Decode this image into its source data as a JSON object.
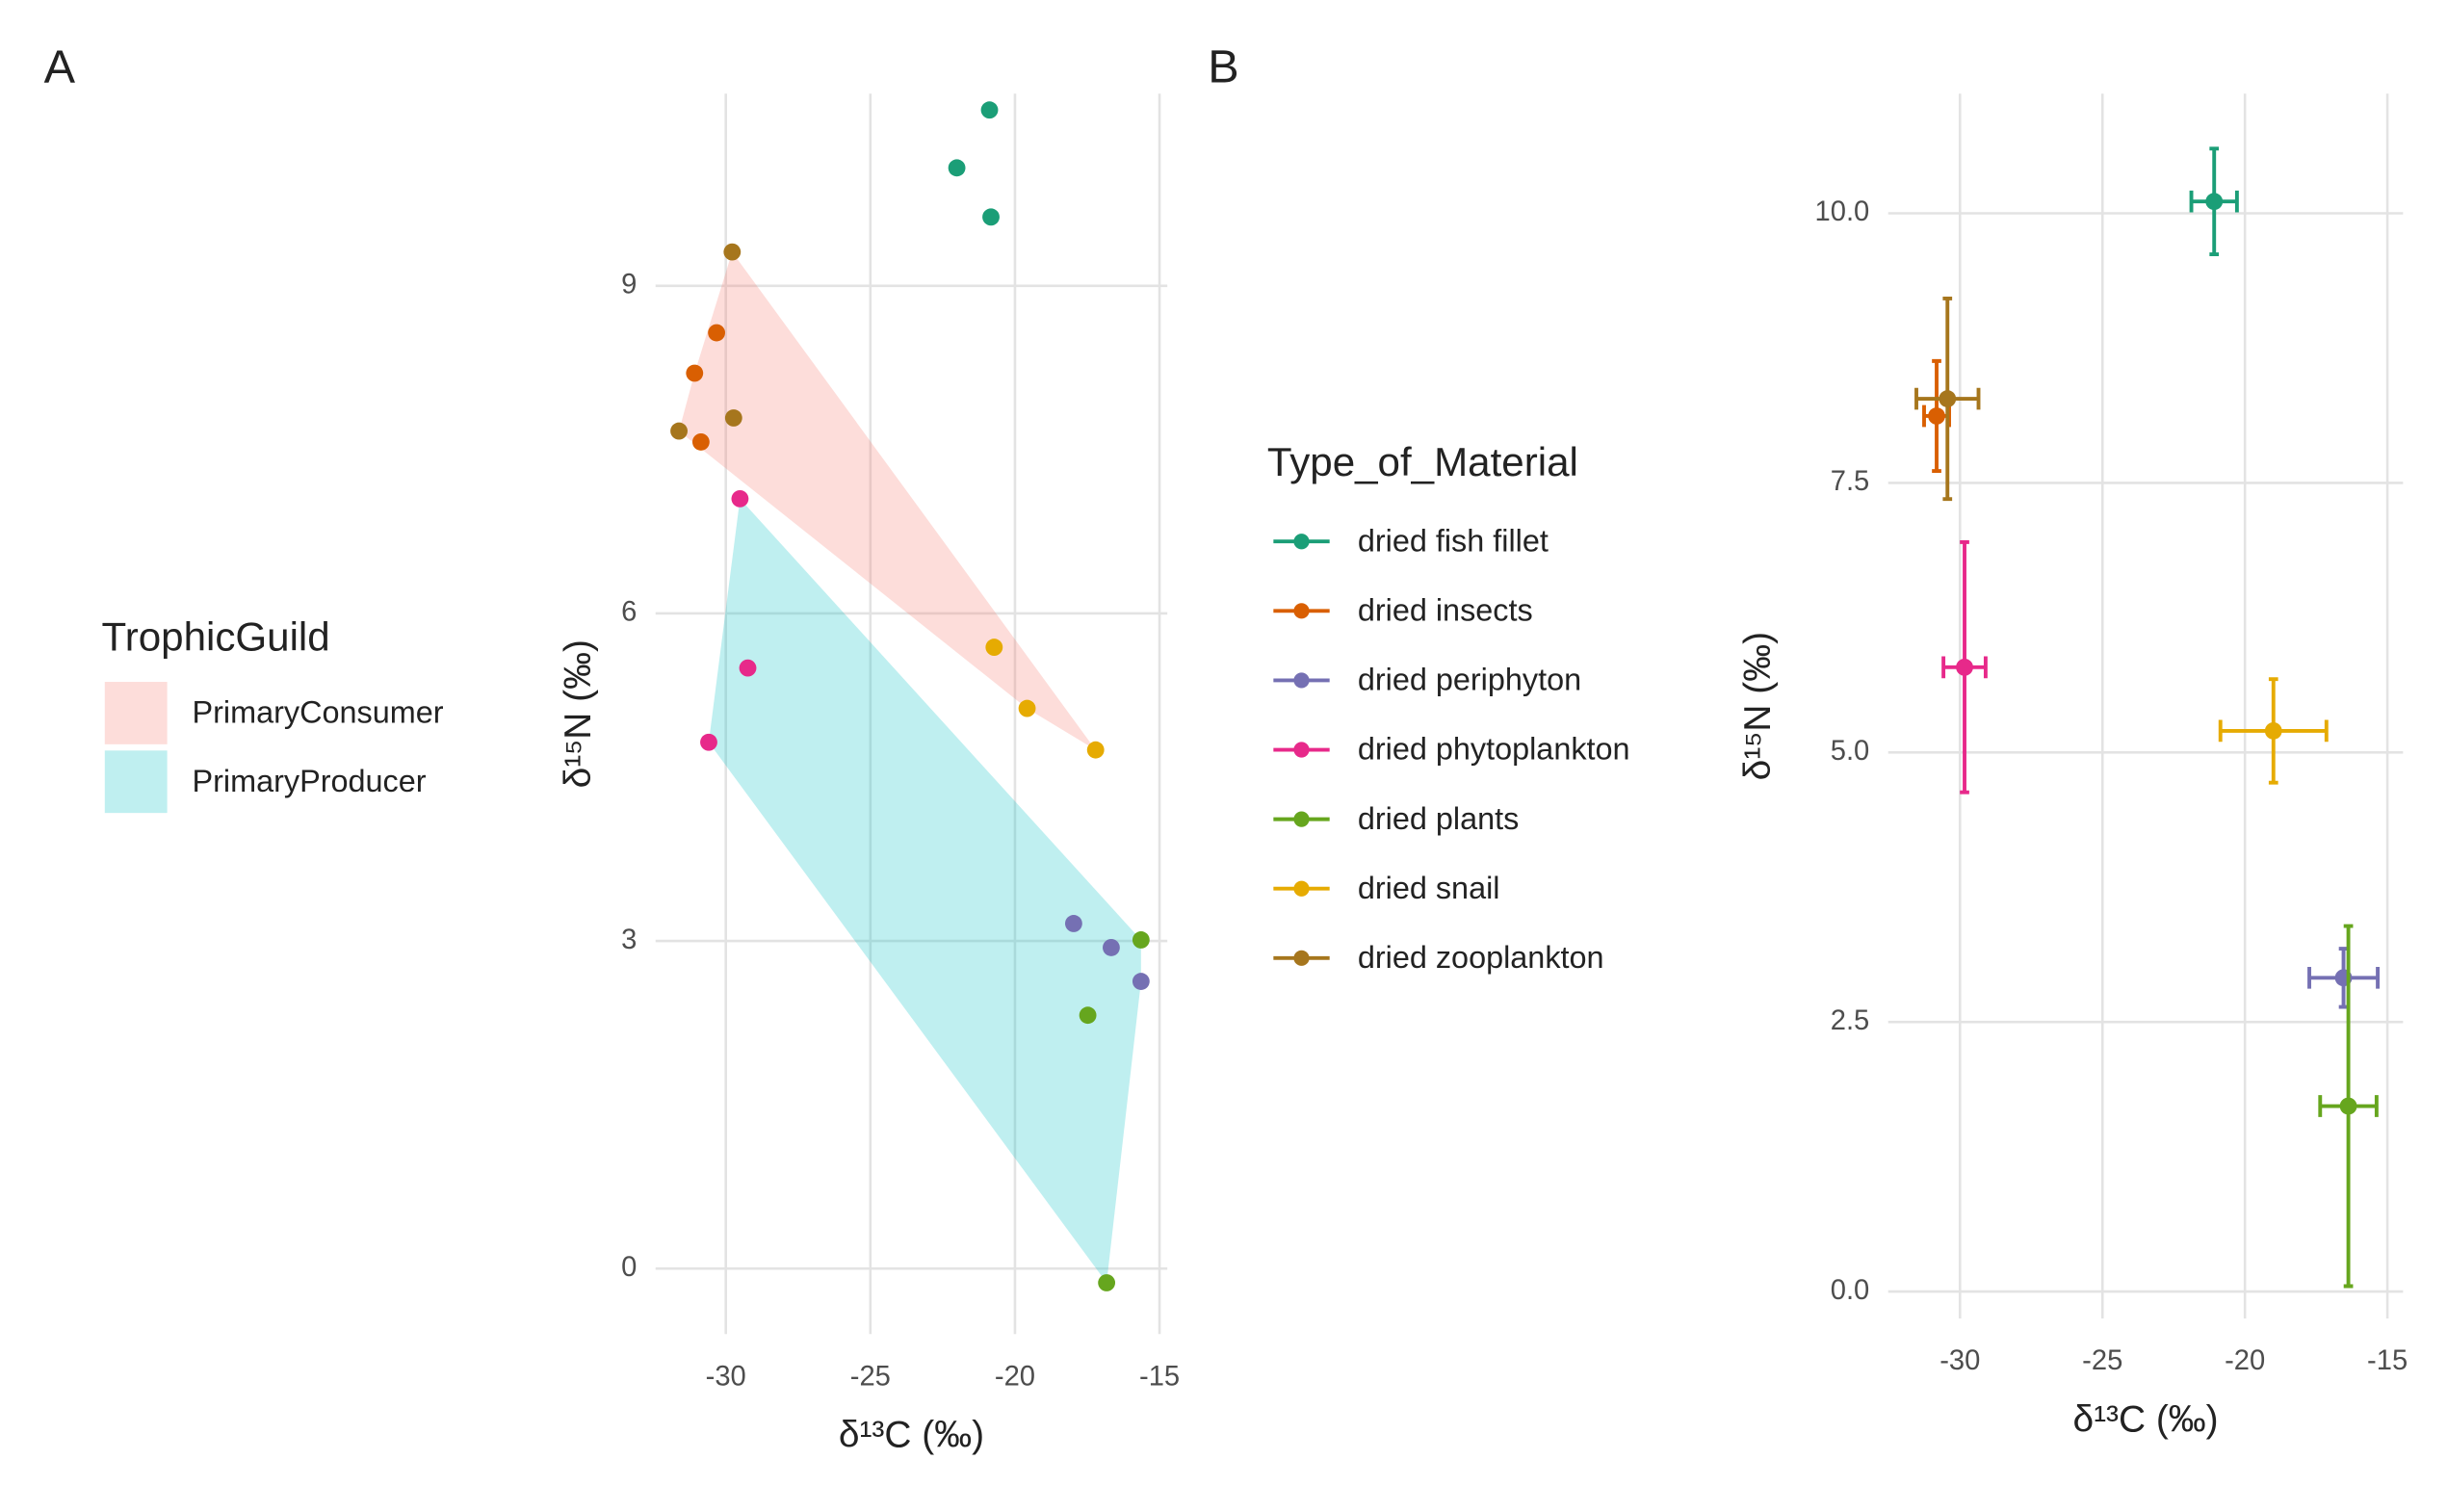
{
  "chart_data": [
    {
      "type": "scatter",
      "panel": "A",
      "x_label": "δ¹³C (‰)",
      "y_label": "δ¹⁵N (‰)",
      "xlim": [
        -32.43,
        -14.73
      ],
      "ylim": [
        -0.6,
        10.76
      ],
      "xticks": [
        -30,
        -25,
        -20,
        -15
      ],
      "yticks": [
        0,
        3,
        6,
        9
      ],
      "grid": true,
      "legend_title": "TrophicGuild",
      "guilds": [
        {
          "name": "PrimaryConsumer",
          "color": "#f8766d"
        },
        {
          "name": "PrimaryProducer",
          "color": "#00bfc4"
        }
      ],
      "series": [
        {
          "guild": null,
          "color": "#1b9e77",
          "x": [
            -20.88,
            -22.01,
            -20.83
          ],
          "values": [
            10.61,
            10.08,
            9.63
          ]
        },
        {
          "guild": "PrimaryConsumer",
          "color": "#d95f02",
          "x": [
            -30.32,
            -31.08,
            -30.86
          ],
          "values": [
            8.57,
            8.2,
            7.57
          ]
        },
        {
          "guild": "PrimaryProducer",
          "color": "#7570b3",
          "x": [
            -17.97,
            -16.67,
            -15.64
          ],
          "values": [
            3.16,
            2.94,
            2.63
          ]
        },
        {
          "guild": "PrimaryProducer",
          "color": "#e7298a",
          "x": [
            -29.51,
            -29.24,
            -30.59
          ],
          "values": [
            7.05,
            5.5,
            4.82
          ]
        },
        {
          "guild": "PrimaryProducer",
          "color": "#66a61e",
          "x": [
            -15.64,
            -17.48,
            -16.83
          ],
          "values": [
            3.01,
            2.32,
            -0.13
          ]
        },
        {
          "guild": "PrimaryConsumer",
          "color": "#e6ab02",
          "x": [
            -20.72,
            -19.58,
            -17.21
          ],
          "values": [
            5.69,
            5.13,
            4.75
          ]
        },
        {
          "guild": "PrimaryConsumer",
          "color": "#a6761d",
          "x": [
            -29.78,
            -29.73,
            -31.62
          ],
          "values": [
            9.31,
            7.79,
            7.67
          ]
        }
      ]
    },
    {
      "type": "errorbar",
      "panel": "B",
      "x_label": "δ¹³C (‰)",
      "y_label": "δ¹⁵N (‰)",
      "xlim": [
        -32.52,
        -14.45
      ],
      "ylim": [
        -0.25,
        11.11
      ],
      "xticks": [
        -30,
        -25,
        -20,
        -15
      ],
      "yticks": [
        {
          "value": 0,
          "label": "0.0"
        },
        2.5,
        {
          "value": 5,
          "label": "5.0"
        },
        7.5,
        {
          "value": 10,
          "label": "10.0"
        }
      ],
      "grid": true,
      "legend_title": "Type_of_Material",
      "series": [
        {
          "name": "dried fish fillet",
          "color": "#1b9e77",
          "x": [
            -21.08
          ],
          "values": [
            10.11
          ],
          "xerr": [
            0.8
          ],
          "yerr": [
            0.49
          ]
        },
        {
          "name": "dried insects",
          "color": "#d95f02",
          "x": [
            -30.82
          ],
          "values": [
            8.12
          ],
          "xerr": [
            0.44
          ],
          "yerr": [
            0.51
          ]
        },
        {
          "name": "dried periphyton",
          "color": "#7570b3",
          "x": [
            -16.54
          ],
          "values": [
            2.91
          ],
          "xerr": [
            1.2
          ],
          "yerr": [
            0.27
          ]
        },
        {
          "name": "dried phytoplankton",
          "color": "#e7298a",
          "x": [
            -29.84
          ],
          "values": [
            5.79
          ],
          "xerr": [
            0.74
          ],
          "yerr": [
            1.16
          ]
        },
        {
          "name": "dried plants",
          "color": "#66a61e",
          "x": [
            -16.37
          ],
          "values": [
            1.72
          ],
          "xerr": [
            0.99
          ],
          "yerr": [
            1.67
          ]
        },
        {
          "name": "dried snail",
          "color": "#e6ab02",
          "x": [
            -19.0
          ],
          "values": [
            5.2
          ],
          "xerr": [
            1.86
          ],
          "yerr": [
            0.48
          ]
        },
        {
          "name": "dried zooplankton",
          "color": "#a6761d",
          "x": [
            -30.44
          ],
          "values": [
            8.28
          ],
          "xerr": [
            1.09
          ],
          "yerr": [
            0.93
          ]
        }
      ]
    }
  ]
}
